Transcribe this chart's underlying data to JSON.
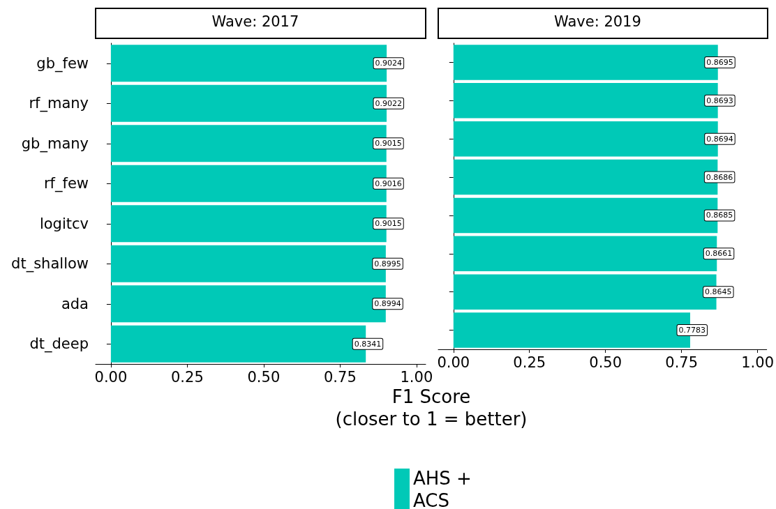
{
  "chart_data": [
    {
      "type": "bar",
      "orientation": "horizontal",
      "title": "Wave: 2017",
      "xlabel": "F1 Score\n(closer to 1 = better)",
      "categories": [
        "gb_few",
        "rf_many",
        "gb_many",
        "rf_few",
        "logitcv",
        "dt_shallow",
        "ada",
        "dt_deep"
      ],
      "series": [
        {
          "name": "AHS + ACS",
          "color": "#00c9b7",
          "values": [
            0.9024,
            0.9022,
            0.9015,
            0.9016,
            0.9015,
            0.8995,
            0.8994,
            0.8341
          ]
        }
      ],
      "xlim": [
        -0.05,
        1.03
      ],
      "xticks": [
        {
          "value": 0,
          "label": "0.00"
        },
        {
          "value": 0.25,
          "label": "0.25"
        },
        {
          "value": 0.5,
          "label": "0.50"
        },
        {
          "value": 0.75,
          "label": "0.75"
        },
        {
          "value": 1,
          "label": "1.00"
        }
      ],
      "data_labels": true,
      "legend": "bottom"
    },
    {
      "type": "bar",
      "orientation": "horizontal",
      "title": "Wave: 2019",
      "categories": [
        null,
        null,
        null,
        null,
        null,
        null,
        null,
        null
      ],
      "series": [
        {
          "color": "#00c9b7",
          "values": [
            0.8695,
            0.8693,
            0.8694,
            0.8686,
            0.8685,
            0.8661,
            0.8645,
            0.7783
          ]
        }
      ],
      "xlim": [
        -0.05,
        1.03
      ],
      "xticks": [
        {
          "value": 0,
          "label": "0.00"
        },
        {
          "value": 0.25,
          "label": "0.25"
        },
        {
          "value": 0.5,
          "label": "0.50"
        },
        {
          "value": 0.75,
          "label": "0.75"
        },
        {
          "value": 1,
          "label": "1.00"
        }
      ],
      "data_labels": true,
      "tick_labels": "x"
    }
  ]
}
